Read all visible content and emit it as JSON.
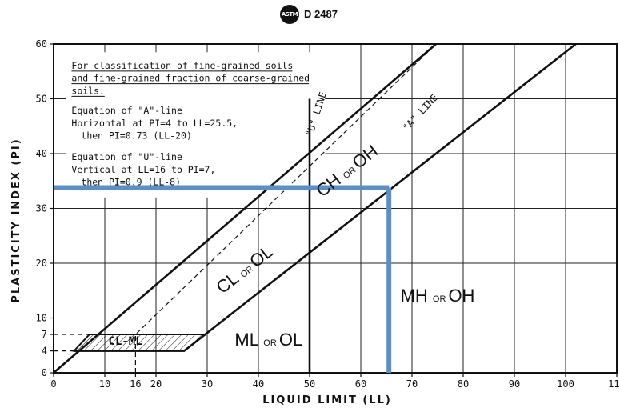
{
  "header": {
    "logo_text": "ASTM",
    "standard": "D 2487"
  },
  "chart_data": {
    "type": "line",
    "title": "",
    "xlabel": "LIQUID LIMIT (LL)",
    "ylabel": "PLASTICITY INDEX (PI)",
    "xlim": [
      0,
      110
    ],
    "ylim": [
      0,
      60
    ],
    "x_ticks": [
      0,
      10,
      16,
      20,
      30,
      40,
      50,
      60,
      70,
      80,
      90,
      100,
      110
    ],
    "y_ticks": [
      0,
      4,
      7,
      10,
      20,
      30,
      40,
      50,
      60
    ],
    "grid": true,
    "notes": [
      "For classification of fine-grained soils",
      "and fine-grained fraction of coarse-grained",
      "soils.",
      "Equation of \"A\"-line",
      "Horizontal at PI=4 to LL=25.5,",
      "then PI=0.73 (LL-20)",
      "Equation of \"U\"-line",
      "Vertical at LL=16 to PI=7,",
      "then PI=0.9 (LL-8)"
    ],
    "series": [
      {
        "name": "\"A\" LINE",
        "style": "solid",
        "x": [
          4,
          25.5,
          102
        ],
        "y": [
          4,
          4,
          60
        ]
      },
      {
        "name": "\"U\" LINE",
        "style": "dashed",
        "x": [
          16,
          16,
          74.7
        ],
        "y": [
          0,
          7,
          60
        ]
      },
      {
        "name": "",
        "style": "solid",
        "x": [
          0,
          74.7
        ],
        "y": [
          0,
          60
        ]
      },
      {
        "name": "",
        "style": "solid",
        "x": [
          50,
          50
        ],
        "y": [
          0,
          50
        ]
      },
      {
        "name": "",
        "style": "dashed",
        "x": [
          0,
          16
        ],
        "y": [
          4,
          4
        ]
      },
      {
        "name": "",
        "style": "dashed",
        "x": [
          0,
          16
        ],
        "y": [
          7,
          7
        ]
      }
    ],
    "zones": [
      {
        "label": "CH",
        "or": "OR",
        "label2": "OH",
        "x": 58,
        "y": 36
      },
      {
        "label": "CL",
        "or": "OR",
        "label2": "OL",
        "x": 38,
        "y": 18
      },
      {
        "label": "MH",
        "or": "OR",
        "label2": "OH",
        "x": 75,
        "y": 13
      },
      {
        "label": "ML",
        "or": "OR",
        "label2": "OL",
        "x": 42,
        "y": 5
      },
      {
        "label": "CL-ML",
        "or": "",
        "label2": "",
        "x": 14,
        "y": 4.5
      }
    ],
    "cl_ml_band": {
      "x_left": [
        4,
        7
      ],
      "x_right": [
        25.5,
        29.6
      ],
      "y": [
        4,
        7
      ]
    },
    "highlight": {
      "color": "#5b8fc9",
      "ll": 65.5,
      "pi": 33.8
    }
  }
}
